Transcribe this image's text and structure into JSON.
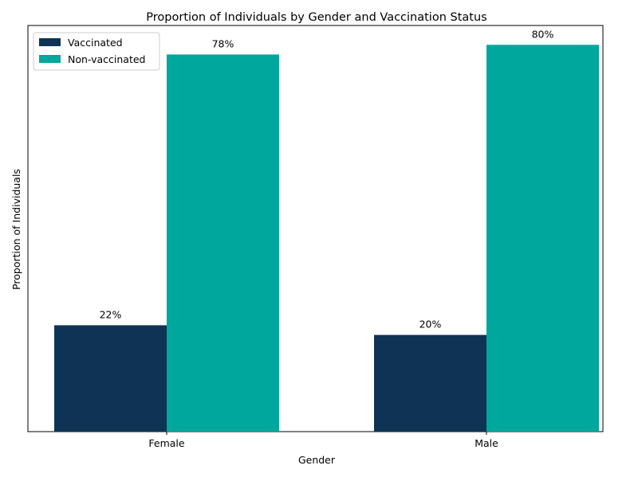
{
  "chart_data": {
    "type": "bar",
    "title": "Proportion of Individuals by Gender and Vaccination Status",
    "xlabel": "Gender",
    "ylabel": "Proportion of Individuals",
    "categories": [
      "Female",
      "Male"
    ],
    "series": [
      {
        "name": "Vaccinated",
        "values": [
          0.22,
          0.2
        ],
        "labels": [
          "22%",
          "20%"
        ],
        "color": "#0f3354"
      },
      {
        "name": "Non-vaccinated",
        "values": [
          0.78,
          0.8
        ],
        "labels": [
          "78%",
          "80%"
        ],
        "color": "#00a79d"
      }
    ],
    "ylim": [
      0,
      0.84
    ],
    "legend": "top-left",
    "grid": false,
    "y_ticks_visible": false
  }
}
